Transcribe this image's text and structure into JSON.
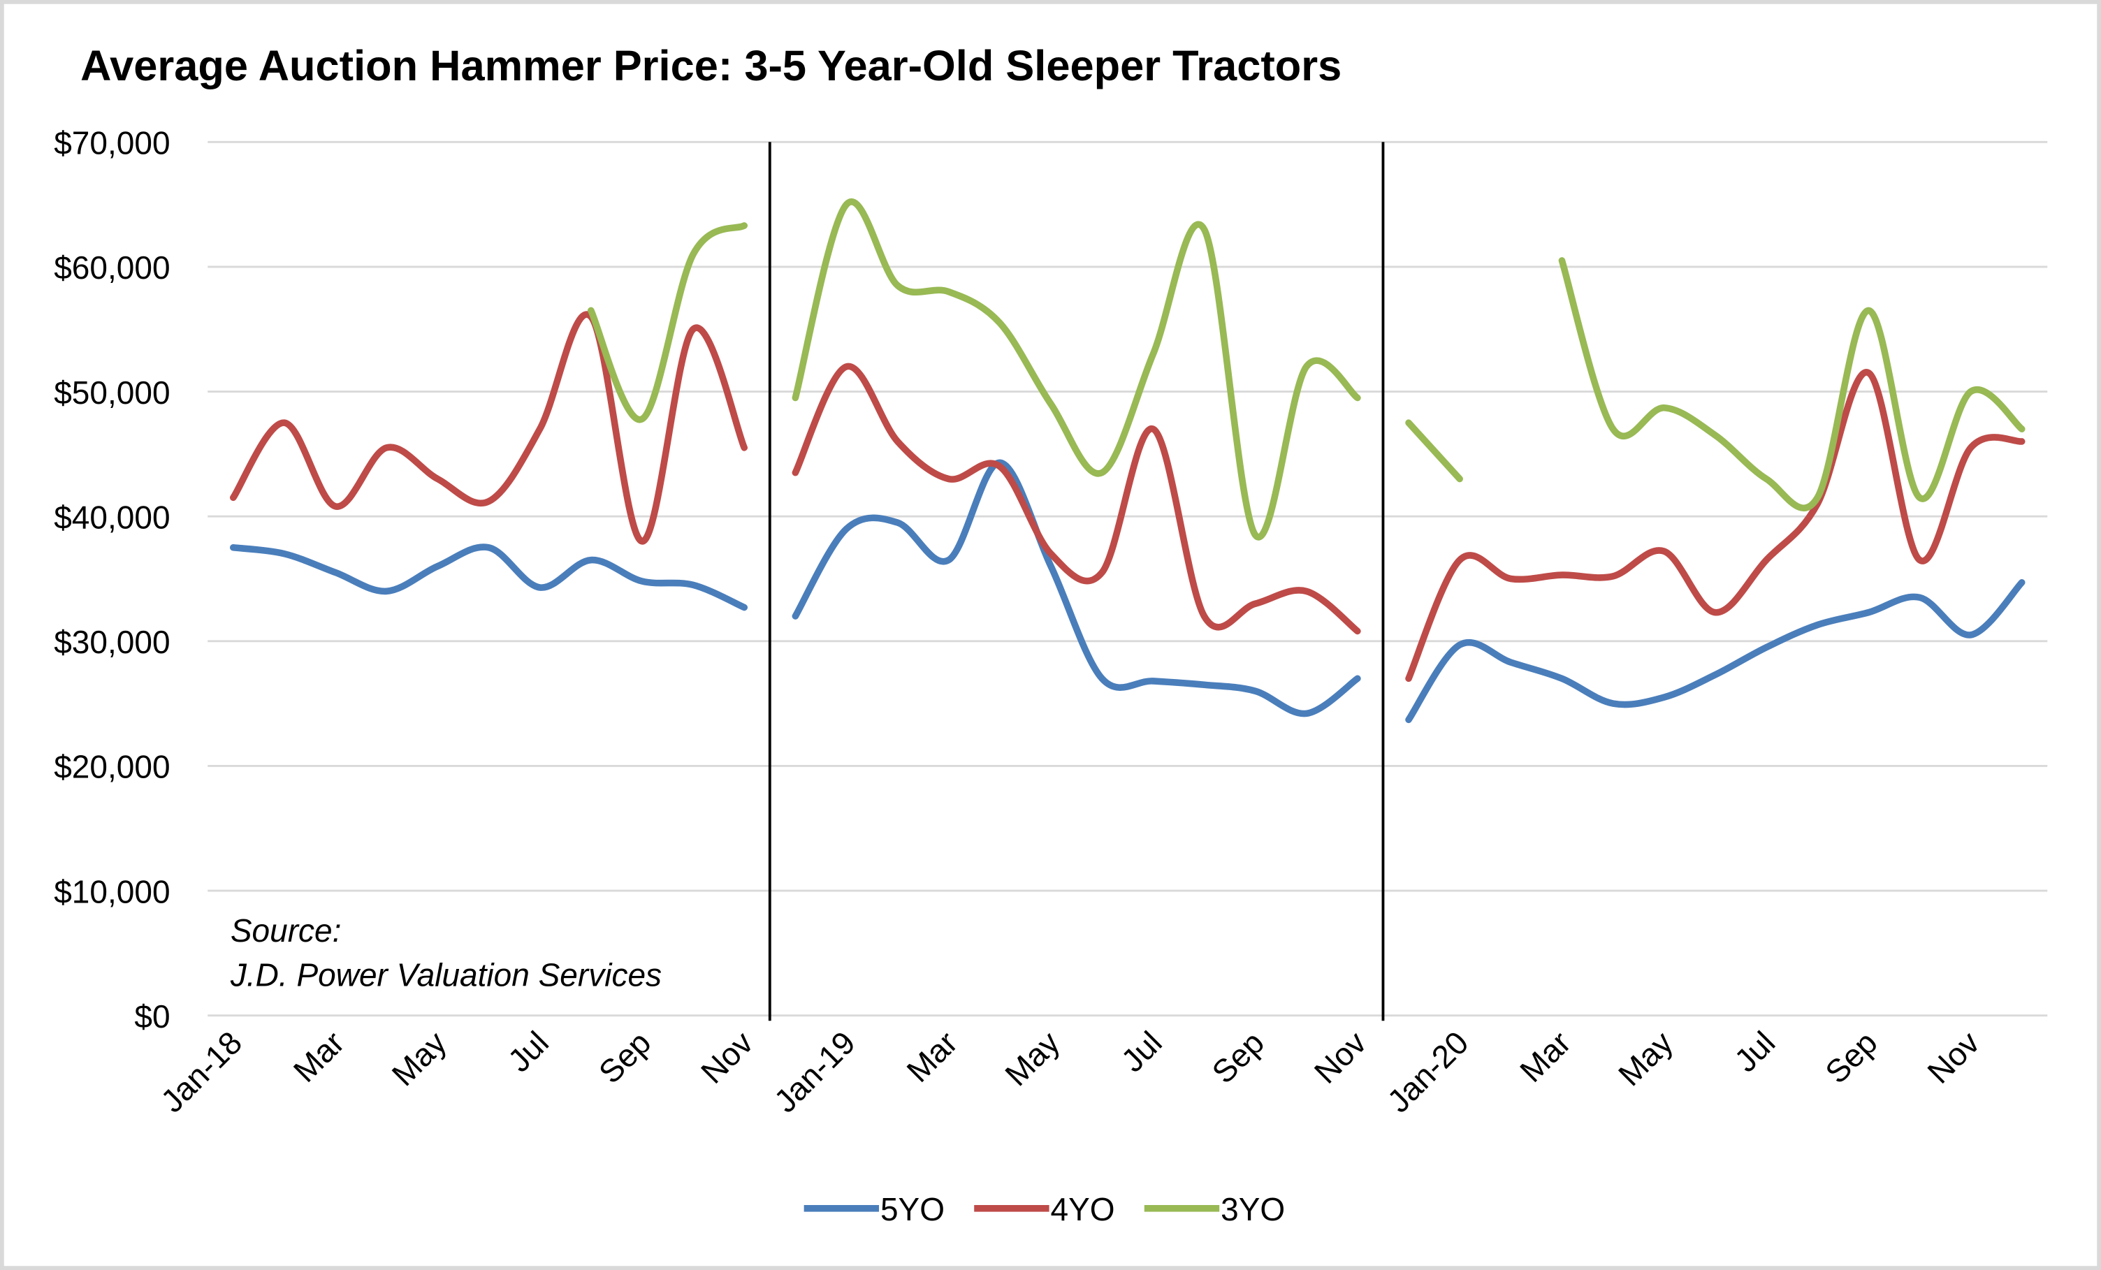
{
  "chart_data": {
    "type": "line",
    "title": "Average Auction Hammer Price: 3-5 Year-Old Sleeper Tractors",
    "annotation": [
      "Source:",
      "J.D. Power Valuation Services"
    ],
    "categories": [
      "Jan-18",
      null,
      "Mar",
      null,
      "May",
      null,
      "Jul",
      null,
      "Sep",
      null,
      "Nov",
      null,
      "Jan-19",
      null,
      "Mar",
      null,
      "May",
      null,
      "Jul",
      null,
      "Sep",
      null,
      "Nov",
      null,
      "Jan-20",
      null,
      "Mar",
      null,
      "May",
      null,
      "Jul",
      null,
      "Sep",
      null,
      "Nov",
      null
    ],
    "breaks_before": [
      11,
      23
    ],
    "ylim": [
      0,
      70000
    ],
    "yticks": [
      {
        "value": 0,
        "label": "$0"
      },
      {
        "value": 10000,
        "label": "$10,000"
      },
      {
        "value": 20000,
        "label": "$20,000"
      },
      {
        "value": 30000,
        "label": "$30,000"
      },
      {
        "value": 40000,
        "label": "$40,000"
      },
      {
        "value": 50000,
        "label": "$50,000"
      },
      {
        "value": 60000,
        "label": "$60,000"
      },
      {
        "value": 70000,
        "label": "$70,000"
      }
    ],
    "grid": true,
    "legend": "bottom",
    "series": [
      {
        "name": "5YO",
        "color": "#4a7ebb",
        "values": [
          37500,
          37000,
          35500,
          34000,
          36000,
          37500,
          34300,
          36500,
          34800,
          34500,
          32700,
          32000,
          39000,
          39500,
          36500,
          44300,
          36000,
          27000,
          26800,
          26500,
          26000,
          24200,
          27000,
          23700,
          29700,
          28300,
          27000,
          25000,
          25500,
          27300,
          29500,
          31300,
          32300,
          33500,
          30500,
          34700
        ]
      },
      {
        "name": "4YO",
        "color": "#be4b48",
        "values": [
          41500,
          47500,
          40800,
          45500,
          43000,
          41200,
          47000,
          56000,
          38000,
          55000,
          45500,
          43500,
          52000,
          46000,
          43000,
          44000,
          37000,
          35500,
          47000,
          32000,
          33000,
          34000,
          30800,
          27000,
          36500,
          35000,
          35300,
          35200,
          37200,
          32300,
          36500,
          41000,
          51500,
          36500,
          45500,
          46000
        ]
      },
      {
        "name": "3YO",
        "color": "#98b954",
        "values": [
          null,
          null,
          null,
          null,
          null,
          null,
          null,
          56500,
          47800,
          61000,
          63300,
          49500,
          65000,
          58500,
          58000,
          55500,
          49000,
          43500,
          53000,
          63000,
          38500,
          52000,
          49500,
          47500,
          43000,
          null,
          60500,
          47000,
          48700,
          46500,
          43000,
          41500,
          56500,
          41500,
          50000,
          47000
        ]
      }
    ]
  }
}
